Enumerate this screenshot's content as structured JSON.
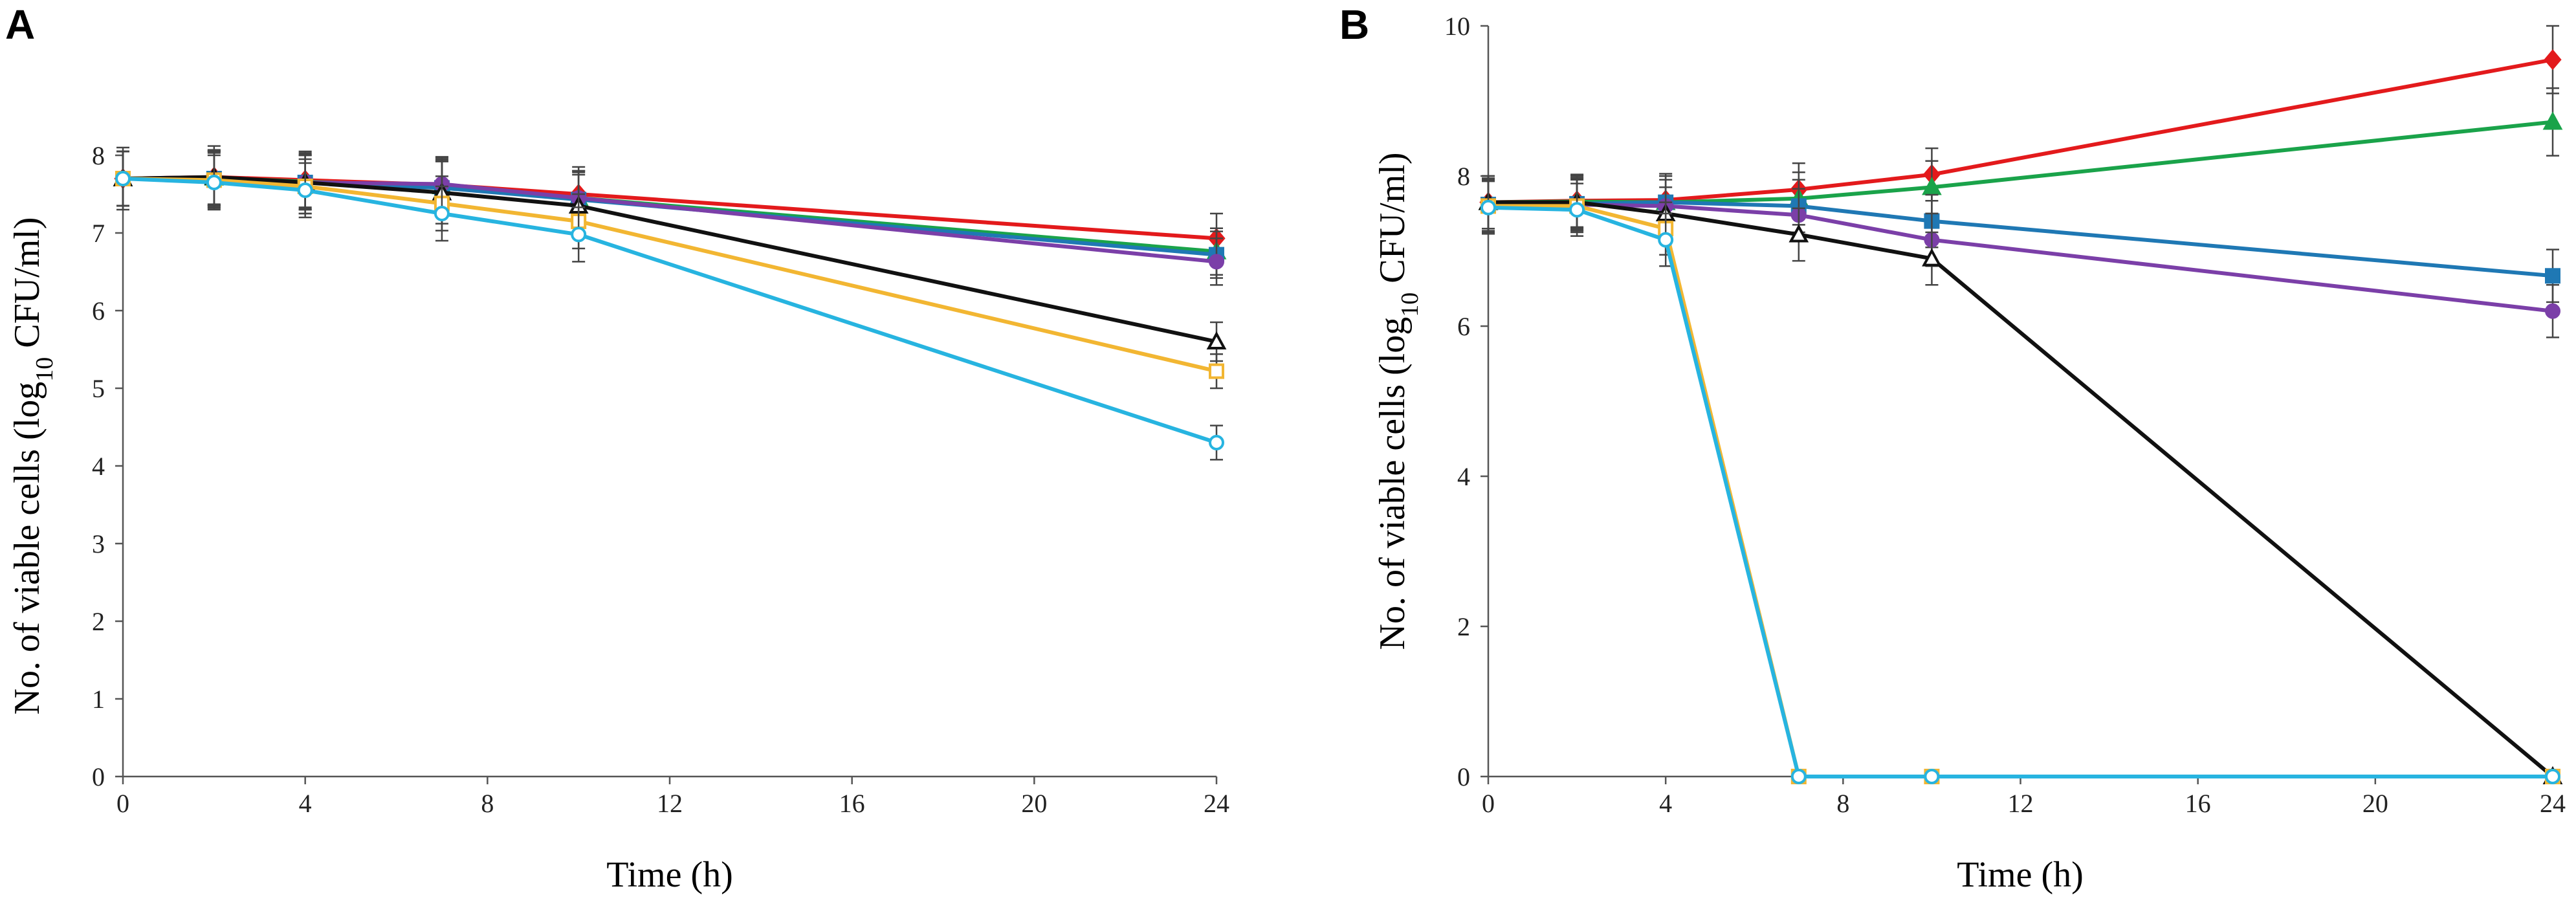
{
  "chart_data": [
    {
      "panel": "A",
      "type": "line",
      "xlabel": "Time (h)",
      "ylabel_main": "No. of viable cells (log",
      "ylabel_sub": "10",
      "ylabel_tail": " CFU/ml)",
      "xlim": [
        0,
        24
      ],
      "ylim": [
        0,
        8
      ],
      "xticks": [
        0,
        4,
        8,
        12,
        16,
        20,
        24
      ],
      "yticks": [
        0,
        1,
        2,
        3,
        4,
        5,
        6,
        7,
        8
      ],
      "x": [
        0,
        2,
        4,
        7,
        10,
        24
      ],
      "series": [
        {
          "name": "red",
          "color": "#e31a1c",
          "marker": "diamond",
          "values": [
            7.7,
            7.72,
            7.68,
            7.62,
            7.5,
            6.93
          ],
          "errors": [
            0.35,
            0.35,
            0.35,
            0.35,
            0.35,
            0.32
          ]
        },
        {
          "name": "green",
          "color": "#1aa34a",
          "marker": "triangle-filled",
          "values": [
            7.7,
            7.71,
            7.66,
            7.6,
            7.45,
            6.76
          ],
          "errors": [
            0.35,
            0.35,
            0.35,
            0.35,
            0.35,
            0.3
          ]
        },
        {
          "name": "blue",
          "color": "#1f78b4",
          "marker": "square-filled",
          "values": [
            7.7,
            7.7,
            7.65,
            7.58,
            7.43,
            6.72
          ],
          "errors": [
            0.35,
            0.35,
            0.35,
            0.35,
            0.35,
            0.3
          ]
        },
        {
          "name": "purple",
          "color": "#7b3fa8",
          "marker": "circle-filled",
          "values": [
            7.7,
            7.7,
            7.65,
            7.63,
            7.45,
            6.63
          ],
          "errors": [
            0.35,
            0.35,
            0.35,
            0.35,
            0.35,
            0.3
          ]
        },
        {
          "name": "black",
          "color": "#111111",
          "marker": "triangle-open",
          "values": [
            7.7,
            7.72,
            7.65,
            7.52,
            7.35,
            5.6
          ],
          "errors": [
            0.4,
            0.4,
            0.4,
            0.4,
            0.4,
            0.25
          ]
        },
        {
          "name": "yellow",
          "color": "#f2b632",
          "marker": "square-open",
          "values": [
            7.7,
            7.68,
            7.6,
            7.38,
            7.15,
            5.22
          ],
          "errors": [
            0.35,
            0.35,
            0.35,
            0.35,
            0.35,
            0.22
          ]
        },
        {
          "name": "cyan",
          "color": "#27b4e0",
          "marker": "circle-open",
          "values": [
            7.7,
            7.65,
            7.55,
            7.25,
            6.98,
            4.3
          ],
          "errors": [
            0.35,
            0.35,
            0.35,
            0.35,
            0.35,
            0.22
          ]
        }
      ]
    },
    {
      "panel": "B",
      "type": "line",
      "xlabel": "Time (h)",
      "ylabel_main": "No. of viable cells (log",
      "ylabel_sub": "10",
      "ylabel_tail": " CFU/ml)",
      "xlim": [
        0,
        24
      ],
      "ylim": [
        0,
        10
      ],
      "xticks": [
        0,
        4,
        8,
        12,
        16,
        20,
        24
      ],
      "yticks": [
        0,
        2,
        4,
        6,
        8,
        10
      ],
      "x": [
        0,
        2,
        4,
        7,
        10,
        24
      ],
      "series": [
        {
          "name": "red",
          "color": "#e31a1c",
          "marker": "diamond",
          "values": [
            7.65,
            7.67,
            7.68,
            7.82,
            8.02,
            9.55
          ],
          "errors": [
            0.35,
            0.35,
            0.35,
            0.35,
            0.35,
            0.45
          ]
        },
        {
          "name": "green",
          "color": "#1aa34a",
          "marker": "triangle-filled",
          "values": [
            7.65,
            7.66,
            7.65,
            7.7,
            7.85,
            8.72
          ],
          "errors": [
            0.35,
            0.35,
            0.35,
            0.35,
            0.35,
            0.45
          ]
        },
        {
          "name": "blue",
          "color": "#1f78b4",
          "marker": "square-filled",
          "values": [
            7.62,
            7.63,
            7.65,
            7.6,
            7.4,
            6.67
          ],
          "errors": [
            0.35,
            0.35,
            0.35,
            0.35,
            0.35,
            0.35
          ]
        },
        {
          "name": "purple",
          "color": "#7b3fa8",
          "marker": "circle-filled",
          "values": [
            7.6,
            7.62,
            7.6,
            7.48,
            7.15,
            6.2
          ],
          "errors": [
            0.35,
            0.35,
            0.35,
            0.35,
            0.35,
            0.35
          ]
        },
        {
          "name": "black",
          "color": "#111111",
          "marker": "triangle-open",
          "values": [
            7.65,
            7.65,
            7.5,
            7.22,
            6.9,
            0.0
          ],
          "errors": [
            0.35,
            0.35,
            0.35,
            0.35,
            0.35,
            0.0
          ]
        },
        {
          "name": "yellow",
          "color": "#f2b632",
          "marker": "square-open",
          "values": [
            7.6,
            7.6,
            7.3,
            0.0,
            0.0,
            0.0
          ],
          "errors": [
            0.35,
            0.35,
            0.35,
            0.0,
            0.0,
            0.0
          ]
        },
        {
          "name": "cyan",
          "color": "#27b4e0",
          "marker": "circle-open",
          "values": [
            7.58,
            7.55,
            7.15,
            0.0,
            0.0,
            0.0
          ],
          "errors": [
            0.35,
            0.35,
            0.35,
            0.0,
            0.0,
            0.0
          ]
        }
      ]
    }
  ]
}
